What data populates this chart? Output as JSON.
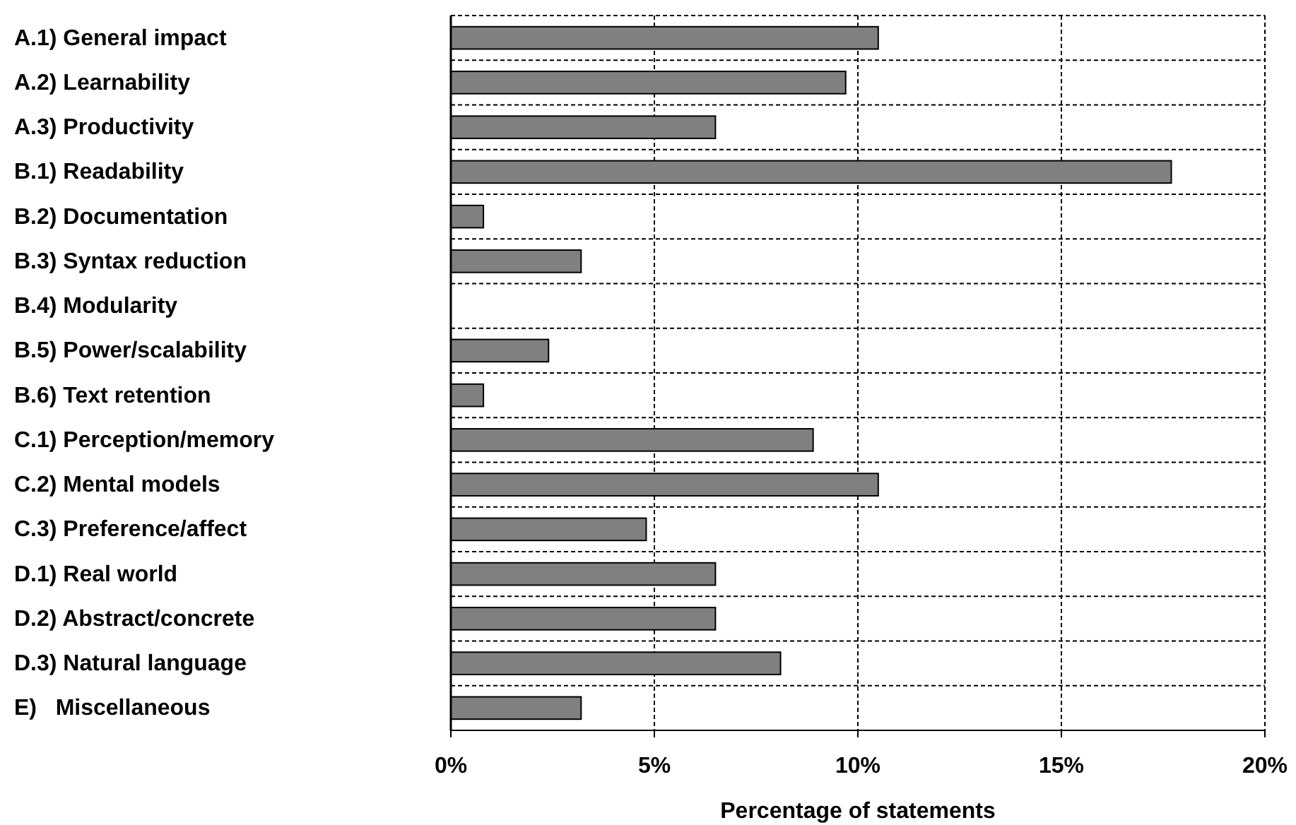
{
  "chart_data": {
    "type": "bar",
    "orientation": "horizontal",
    "xlabel": "Percentage of statements",
    "categories": [
      "A.1) General impact",
      "A.2) Learnability",
      "A.3) Productivity",
      "B.1) Readability",
      "B.2) Documentation",
      "B.3) Syntax reduction",
      "B.4) Modularity",
      "B.5) Power/scalability",
      "B.6) Text retention",
      "C.1) Perception/memory",
      "C.2) Mental models",
      "C.3) Preference/affect",
      "D.1) Real world",
      "D.2) Abstract/concrete",
      "D.3) Natural language",
      "E)   Miscellaneous"
    ],
    "values": [
      10.5,
      9.7,
      6.5,
      17.7,
      0.8,
      3.2,
      0,
      2.4,
      0.8,
      8.9,
      10.5,
      4.8,
      6.5,
      6.5,
      8.1,
      3.2
    ],
    "color": "#808080",
    "xlim": [
      0,
      20
    ],
    "xticks": [
      {
        "value": 0,
        "label": "0%"
      },
      {
        "value": 5,
        "label": "5%"
      },
      {
        "value": 10,
        "label": "10%"
      },
      {
        "value": 15,
        "label": "15%"
      },
      {
        "value": 20,
        "label": "20%"
      }
    ],
    "grid": true
  }
}
